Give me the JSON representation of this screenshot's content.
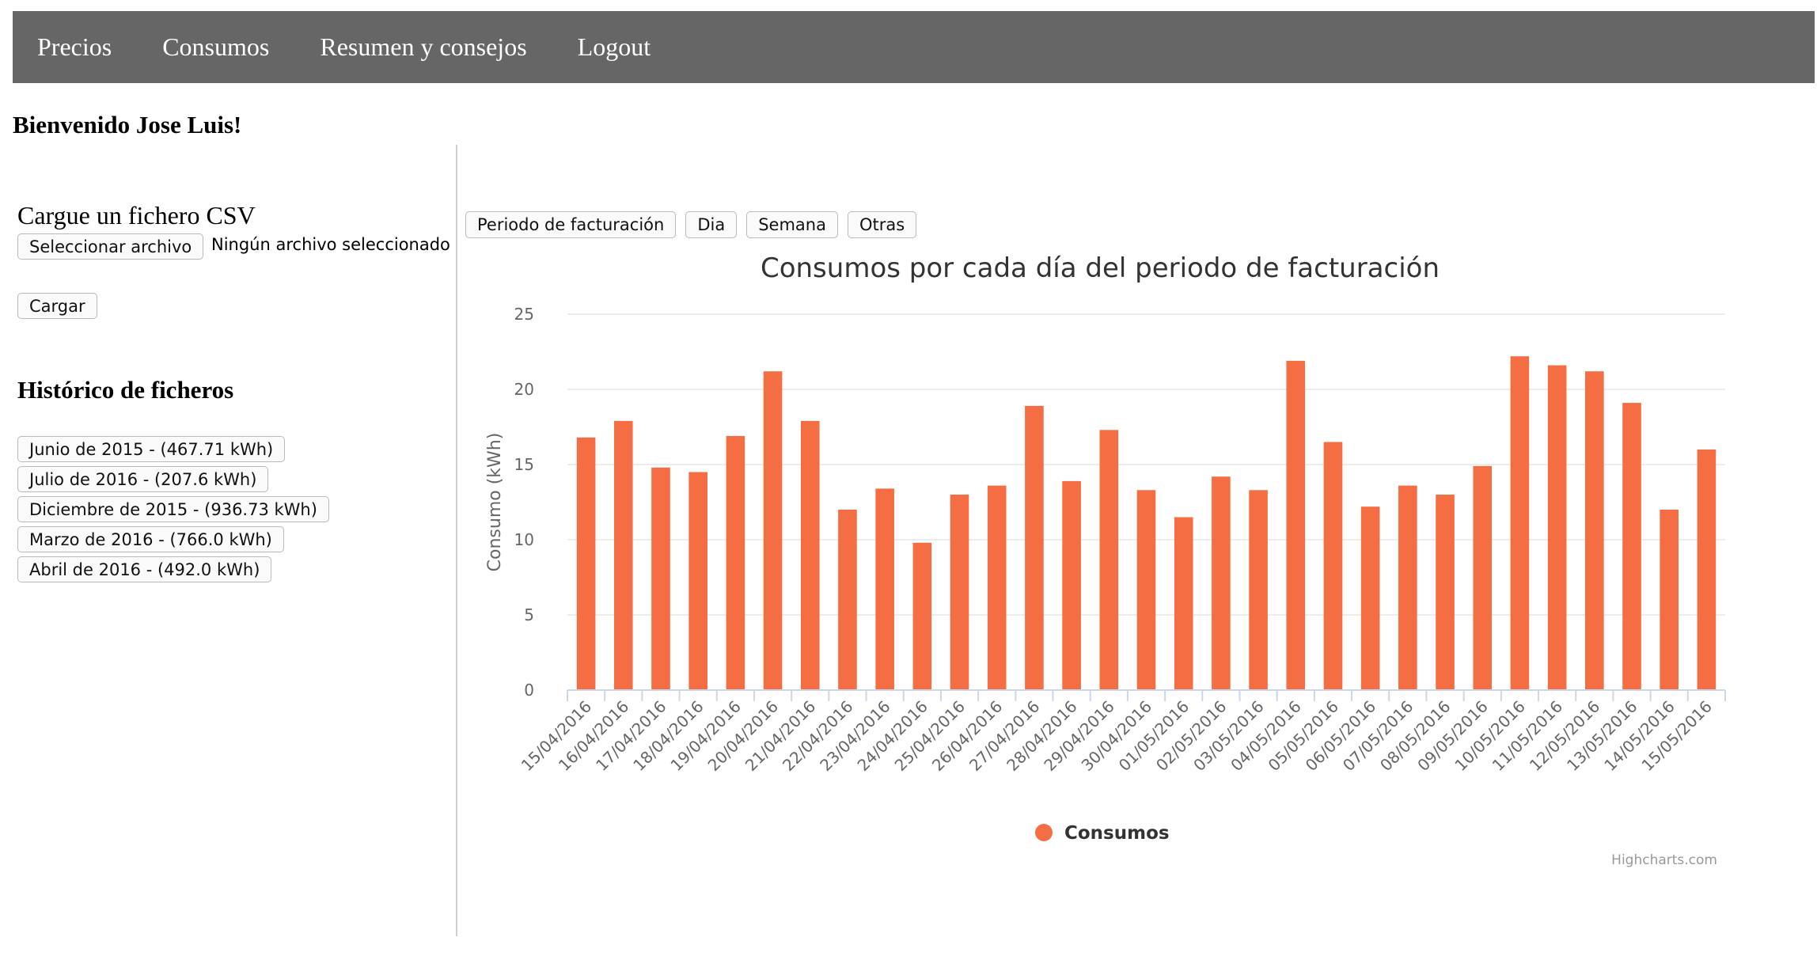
{
  "nav": {
    "items": [
      "Precios",
      "Consumos",
      "Resumen y consejos",
      "Logout"
    ]
  },
  "welcome": "Bienvenido Jose Luis!",
  "upload": {
    "title": "Cargue un fichero CSV",
    "select_label": "Seleccionar archivo",
    "file_status": "Ningún archivo seleccionado",
    "submit_label": "Cargar"
  },
  "history": {
    "title": "Histórico de ficheros",
    "items": [
      "Junio de 2015 - (467.71 kWh)",
      "Julio de 2016 - (207.6 kWh)",
      "Diciembre de 2015 - (936.73 kWh)",
      "Marzo de 2016 - (766.0 kWh)",
      "Abril de 2016 - (492.0 kWh)"
    ]
  },
  "period_buttons": [
    "Periodo de facturación",
    "Dia",
    "Semana",
    "Otras"
  ],
  "colors": {
    "bar": "#f46d43",
    "nav_bg": "#666666",
    "grid": "#e6e6e6"
  },
  "chart_data": {
    "type": "bar",
    "title": "Consumos por cada día del periodo de facturación",
    "ylabel": "Consumo (kWh)",
    "xlabel": "",
    "ylim": [
      0,
      25
    ],
    "yticks": [
      0,
      5,
      10,
      15,
      20,
      25
    ],
    "grid": true,
    "legend_position": "bottom-center",
    "credits": "Highcharts.com",
    "categories": [
      "15/04/2016",
      "16/04/2016",
      "17/04/2016",
      "18/04/2016",
      "19/04/2016",
      "20/04/2016",
      "21/04/2016",
      "22/04/2016",
      "23/04/2016",
      "24/04/2016",
      "25/04/2016",
      "26/04/2016",
      "27/04/2016",
      "28/04/2016",
      "29/04/2016",
      "30/04/2016",
      "01/05/2016",
      "02/05/2016",
      "03/05/2016",
      "04/05/2016",
      "05/05/2016",
      "06/05/2016",
      "07/05/2016",
      "08/05/2016",
      "09/05/2016",
      "10/05/2016",
      "11/05/2016",
      "12/05/2016",
      "13/05/2016",
      "14/05/2016",
      "15/05/2016"
    ],
    "series": [
      {
        "name": "Consumos",
        "color": "#f46d43",
        "values": [
          16.8,
          17.9,
          14.8,
          14.5,
          16.9,
          21.2,
          17.9,
          12.0,
          13.4,
          9.8,
          13.0,
          13.6,
          18.9,
          13.9,
          17.3,
          13.3,
          11.5,
          14.2,
          13.3,
          21.9,
          16.5,
          12.2,
          13.6,
          13.0,
          14.9,
          22.2,
          21.6,
          21.2,
          19.1,
          12.0,
          16.0
        ]
      }
    ]
  }
}
